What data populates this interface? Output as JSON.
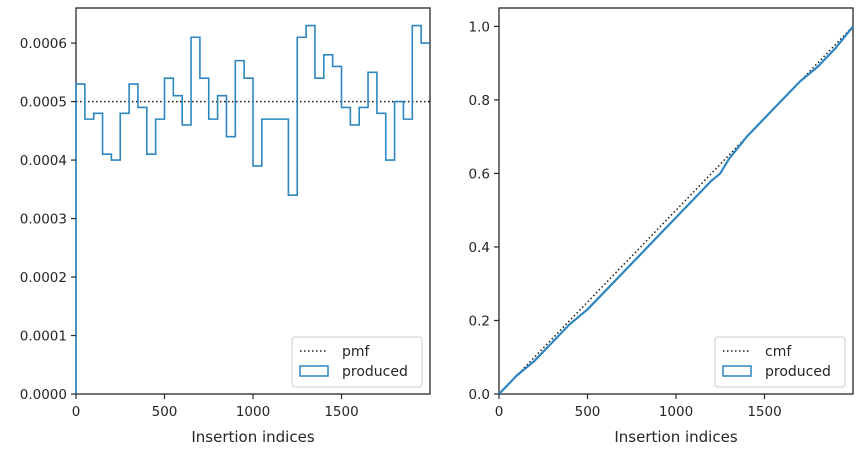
{
  "chart_data": [
    {
      "type": "step",
      "xlabel": "Insertion indices",
      "ylabel": "",
      "xlim": [
        0,
        2000
      ],
      "ylim": [
        0,
        0.00066
      ],
      "xticks": [
        0,
        500,
        1000,
        1500
      ],
      "xtick_labels": [
        "0",
        "500",
        "1000",
        "1500"
      ],
      "yticks": [
        0,
        0.0001,
        0.0002,
        0.0003,
        0.0004,
        0.0005,
        0.0006
      ],
      "ytick_labels": [
        "0.0000",
        "0.0001",
        "0.0002",
        "0.0003",
        "0.0004",
        "0.0005",
        "0.0006"
      ],
      "bin_width": 50,
      "bin_starts": [
        0,
        50,
        100,
        150,
        200,
        250,
        300,
        350,
        400,
        450,
        500,
        550,
        600,
        650,
        700,
        750,
        800,
        850,
        900,
        950,
        1000,
        1050,
        1100,
        1150,
        1200,
        1250,
        1300,
        1350,
        1400,
        1450,
        1500,
        1550,
        1600,
        1650,
        1700,
        1750,
        1800,
        1850,
        1900,
        1950
      ],
      "series": [
        {
          "name": "pmf",
          "style": "dotted",
          "color": "#1a1a1a",
          "value": 0.0005
        },
        {
          "name": "produced",
          "style": "step",
          "color": "#2e86c1",
          "values": [
            0.00053,
            0.00047,
            0.00048,
            0.00041,
            0.0004,
            0.00048,
            0.00053,
            0.00049,
            0.00041,
            0.00047,
            0.00054,
            0.00051,
            0.00046,
            0.00061,
            0.00054,
            0.00047,
            0.00051,
            0.00044,
            0.00057,
            0.00054,
            0.00039,
            0.00047,
            0.00047,
            0.00047,
            0.00034,
            0.00061,
            0.00063,
            0.00054,
            0.00058,
            0.00056,
            0.00049,
            0.00046,
            0.00049,
            0.00055,
            0.00048,
            0.0004,
            0.0005,
            0.00047,
            0.00063,
            0.0006
          ]
        }
      ],
      "legend": {
        "position": "lower-right",
        "entries": [
          "pmf",
          "produced"
        ]
      }
    },
    {
      "type": "line",
      "xlabel": "Insertion indices",
      "ylabel": "",
      "xlim": [
        0,
        2000
      ],
      "ylim": [
        0,
        1.05
      ],
      "xticks": [
        0,
        500,
        1000,
        1500
      ],
      "xtick_labels": [
        "0",
        "500",
        "1000",
        "1500"
      ],
      "yticks": [
        0,
        0.2,
        0.4,
        0.6,
        0.8,
        1.0
      ],
      "ytick_labels": [
        "0.0",
        "0.2",
        "0.4",
        "0.6",
        "0.8",
        "1.0"
      ],
      "series": [
        {
          "name": "cmf",
          "style": "dotted",
          "color": "#1a1a1a",
          "x": [
            0,
            2000
          ],
          "y": [
            0,
            1.0
          ]
        },
        {
          "name": "produced",
          "style": "solid",
          "color": "#2e86c1",
          "x": [
            0,
            100,
            200,
            300,
            400,
            500,
            600,
            700,
            800,
            900,
            1000,
            1100,
            1200,
            1250,
            1300,
            1400,
            1500,
            1600,
            1700,
            1800,
            1900,
            2000
          ],
          "y": [
            0,
            0.05,
            0.09,
            0.14,
            0.19,
            0.23,
            0.28,
            0.33,
            0.38,
            0.43,
            0.48,
            0.53,
            0.58,
            0.6,
            0.64,
            0.7,
            0.75,
            0.8,
            0.85,
            0.89,
            0.94,
            1.0
          ]
        }
      ],
      "legend": {
        "position": "lower-right",
        "entries": [
          "cmf",
          "produced"
        ]
      }
    }
  ]
}
